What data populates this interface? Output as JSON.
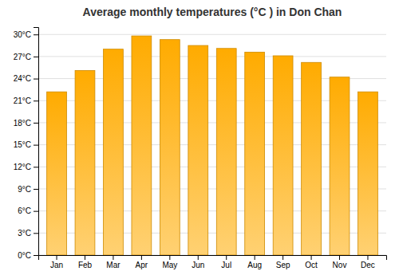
{
  "chart_data": {
    "type": "bar",
    "title": "Average monthly temperatures (°C ) in Don Chan",
    "categories": [
      "Jan",
      "Feb",
      "Mar",
      "Apr",
      "May",
      "Jun",
      "Jul",
      "Aug",
      "Sep",
      "Oct",
      "Nov",
      "Dec"
    ],
    "values": [
      22.2,
      25.1,
      28.0,
      29.8,
      29.3,
      28.5,
      28.1,
      27.6,
      27.1,
      26.2,
      24.2,
      22.2
    ],
    "color": "#FFAB00",
    "ylim": [
      0,
      31
    ],
    "yticks": [
      {
        "value": 0,
        "label": "0°C"
      },
      {
        "value": 3,
        "label": "3°C"
      },
      {
        "value": 6,
        "label": "6°C"
      },
      {
        "value": 9,
        "label": "9°C"
      },
      {
        "value": 12,
        "label": "12°C"
      },
      {
        "value": 15,
        "label": "15°C"
      },
      {
        "value": 18,
        "label": "18°C"
      },
      {
        "value": 21,
        "label": "21°C"
      },
      {
        "value": 24,
        "label": "24°C"
      },
      {
        "value": 27,
        "label": "27°C"
      },
      {
        "value": 30,
        "label": "30°C"
      }
    ],
    "grid": true
  }
}
